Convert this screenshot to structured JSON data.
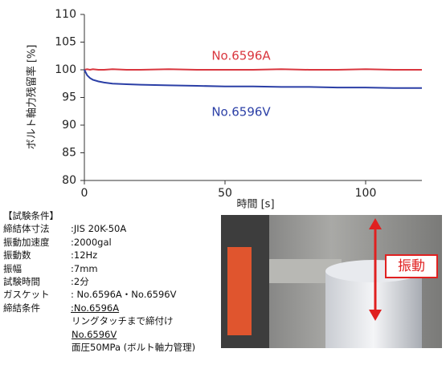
{
  "chart_data": {
    "type": "line",
    "ylabel": "ボルト軸力残留率 [%]",
    "xlabel": "時間 [s]",
    "x": [
      0,
      1,
      2,
      3,
      5,
      7,
      10,
      15,
      20,
      30,
      40,
      50,
      60,
      70,
      80,
      90,
      100,
      110,
      120
    ],
    "series": [
      {
        "name": "No.6596A",
        "color": "#d9363e",
        "values": [
          100,
          100.1,
          100,
          100.1,
          100,
          100,
          100.1,
          100,
          100,
          100.1,
          100,
          100,
          100,
          100.1,
          100,
          100,
          100.1,
          100,
          100
        ]
      },
      {
        "name": "No.6596V",
        "color": "#2b3fa6",
        "values": [
          100,
          99,
          98.5,
          98.2,
          97.9,
          97.7,
          97.5,
          97.4,
          97.3,
          97.2,
          97.1,
          97.0,
          97.0,
          96.9,
          96.9,
          96.8,
          96.8,
          96.7,
          96.7
        ]
      }
    ],
    "xlim": [
      0,
      120
    ],
    "xticks": [
      0,
      50,
      100
    ],
    "ylim": [
      80,
      110
    ],
    "yticks": [
      80,
      85,
      90,
      95,
      100,
      105,
      110
    ],
    "grid": false
  },
  "conditions": {
    "heading": "【試験条件】",
    "rows": [
      [
        "締結体寸法",
        ":JIS 20K-50A"
      ],
      [
        "振動加速度",
        ":2000gal"
      ],
      [
        "振動数",
        ":12Hz"
      ],
      [
        "振幅",
        ":7mm"
      ],
      [
        "試験時間",
        ":2分"
      ],
      [
        "ガスケット",
        ": No.6596A・No.6596V"
      ],
      [
        "締結条件",
        ":No.6596A"
      ]
    ],
    "notes": [
      "リングタッチまで締付け",
      "No.6596V",
      "面圧50MPa (ボルト軸力管理)"
    ]
  },
  "photo_label": "振動"
}
